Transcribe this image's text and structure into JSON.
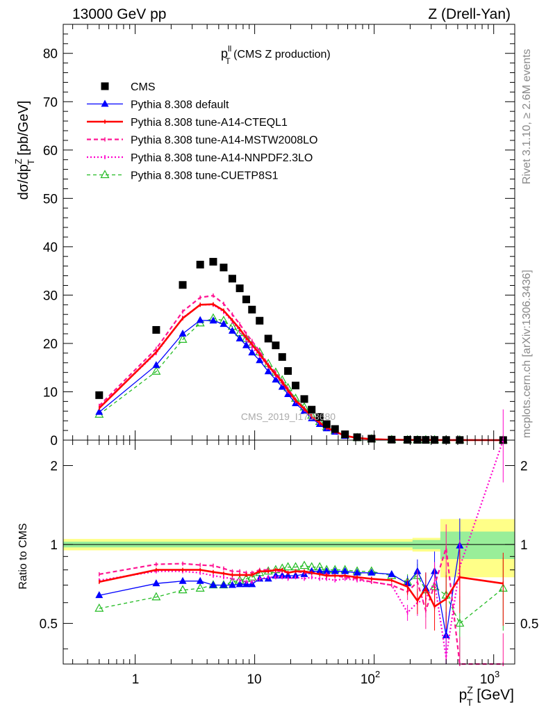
{
  "header": {
    "left": "13000 GeV pp",
    "right": "Z (Drell-Yan)"
  },
  "side": {
    "rivet": "Rivet 3.1.10, ≥ 2.6M events",
    "mcplots": "mcplots.cern.ch [arXiv:1306.3436]"
  },
  "watermark": "CMS_2019_I1753680",
  "main": {
    "title_main": "p",
    "title_sup": "ll",
    "title_sub": "T",
    "title_rest": " (CMS Z production)",
    "ylabel": "dσ/dp",
    "ylabel_sup": "Z",
    "ylabel_sub": "T",
    "ylabel_rest": " [pb/GeV]",
    "yticks": [
      "0",
      "10",
      "20",
      "30",
      "40",
      "50",
      "60",
      "70",
      "80"
    ]
  },
  "ratio": {
    "ylabel": "Ratio to CMS",
    "yticks": [
      "0.5",
      "1",
      "2"
    ]
  },
  "xaxis": {
    "label_main": "p",
    "label_sup": "Z",
    "label_sub": "T",
    "label_rest": " [GeV]",
    "tick_1": "1",
    "tick_10": "10",
    "tick_100_base": "10",
    "tick_100_exp": "2",
    "tick_1000_base": "10",
    "tick_1000_exp": "3"
  },
  "chart_data": {
    "type": "line",
    "xscale": "log",
    "xlim": [
      0.25,
      1500
    ],
    "ylim": [
      0,
      86
    ],
    "ratio_ylim": [
      0.35,
      2.5
    ],
    "ratio_yscale": "log",
    "legend_position": "top-left",
    "x": [
      0.5,
      1.5,
      2.5,
      3.5,
      4.5,
      5.5,
      6.5,
      7.5,
      8.5,
      9.5,
      11,
      13,
      15,
      17,
      19,
      22,
      26,
      30,
      35,
      40,
      47,
      57,
      72,
      95,
      140,
      190,
      230,
      270,
      320,
      400,
      520,
      1200
    ],
    "series": [
      {
        "name": "CMS",
        "color": "#000000",
        "style": "marker-square",
        "values": [
          9.3,
          22.8,
          32.1,
          36.3,
          36.9,
          35.7,
          33.4,
          31.4,
          29.1,
          27.0,
          24.7,
          21.0,
          19.6,
          17.2,
          14.3,
          11.3,
          8.5,
          6.3,
          4.8,
          3.3,
          2.3,
          1.2,
          0.6,
          0.3,
          0.1,
          0.07,
          0.06,
          0.05,
          0.04,
          0.03,
          0.02,
          0.01
        ]
      },
      {
        "name": "Pythia 8.308 default",
        "color": "#0000ff",
        "style": "solid-triangle",
        "values": [
          5.8,
          15.5,
          22.0,
          24.8,
          24.7,
          24.0,
          22.6,
          21.0,
          19.6,
          18.1,
          16.5,
          14.2,
          12.5,
          11.0,
          9.5,
          7.6,
          6.0,
          4.5,
          3.3,
          2.4,
          1.7,
          0.85,
          0.44,
          0.2,
          0.08,
          0.05,
          0.04,
          0.04,
          0.03,
          0.02,
          0.01,
          0.0
        ]
      },
      {
        "name": "Pythia 8.308 tune-A14-CTEQL1",
        "color": "#ff0000",
        "style": "solid-thick",
        "values": [
          6.6,
          18.2,
          25.2,
          28.0,
          28.1,
          26.8,
          24.8,
          23.0,
          21.2,
          19.8,
          17.8,
          15.4,
          13.6,
          12.0,
          10.3,
          8.2,
          6.5,
          4.9,
          3.6,
          2.6,
          1.8,
          0.9,
          0.46,
          0.21,
          0.08,
          0.05,
          0.04,
          0.04,
          0.03,
          0.02,
          0.01,
          0.0
        ]
      },
      {
        "name": "Pythia 8.308 tune-A14-MSTW2008LO",
        "color": "#ff1493",
        "style": "dashed",
        "values": [
          7.1,
          18.9,
          26.6,
          29.5,
          29.9,
          28.2,
          26.0,
          24.0,
          22.0,
          20.5,
          18.4,
          15.6,
          14.0,
          12.3,
          10.6,
          8.4,
          6.6,
          5.0,
          3.7,
          2.6,
          1.8,
          0.9,
          0.46,
          0.21,
          0.08,
          0.05,
          0.04,
          0.03,
          0.03,
          0.02,
          0.01,
          0.0
        ]
      },
      {
        "name": "Pythia 8.308 tune-A14-NNPDF2.3LO",
        "color": "#ff00cc",
        "style": "dotted",
        "values": [
          6.8,
          18.0,
          25.3,
          28.0,
          28.0,
          26.5,
          24.5,
          22.6,
          20.8,
          19.2,
          17.4,
          15.2,
          13.3,
          11.7,
          10.1,
          8.0,
          6.3,
          4.8,
          3.5,
          2.5,
          1.7,
          0.88,
          0.44,
          0.2,
          0.08,
          0.05,
          0.04,
          0.03,
          0.03,
          0.02,
          0.01,
          0.0
        ]
      },
      {
        "name": "Pythia 8.308 tune-CUETP8S1",
        "color": "#22bb22",
        "style": "dashed-triangle-open",
        "values": [
          5.3,
          14.2,
          20.8,
          24.2,
          25.2,
          24.7,
          23.5,
          22.2,
          21.0,
          19.8,
          18.2,
          15.8,
          14.0,
          12.4,
          10.8,
          8.6,
          6.8,
          5.1,
          3.8,
          2.7,
          1.9,
          0.98,
          0.49,
          0.22,
          0.08,
          0.05,
          0.04,
          0.04,
          0.03,
          0.02,
          0.01,
          0.0
        ]
      }
    ],
    "ratio_series": [
      {
        "name": "Pythia 8.308 default",
        "values": [
          0.64,
          0.71,
          0.725,
          0.725,
          0.7,
          0.7,
          0.7,
          0.705,
          0.705,
          0.705,
          0.74,
          0.74,
          0.76,
          0.76,
          0.76,
          0.76,
          0.77,
          0.79,
          0.79,
          0.79,
          0.79,
          0.79,
          0.78,
          0.78,
          0.77,
          0.71,
          0.79,
          0.68,
          0.79,
          0.45,
          0.99,
          0.0
        ]
      },
      {
        "name": "Pythia 8.308 tune-A14-CTEQL1",
        "values": [
          0.72,
          0.8,
          0.8,
          0.8,
          0.785,
          0.775,
          0.765,
          0.765,
          0.765,
          0.765,
          0.79,
          0.79,
          0.8,
          0.8,
          0.78,
          0.79,
          0.79,
          0.78,
          0.77,
          0.76,
          0.76,
          0.76,
          0.75,
          0.74,
          0.73,
          0.69,
          0.61,
          0.68,
          0.58,
          0.62,
          0.75,
          0.71
        ]
      },
      {
        "name": "Pythia 8.308 tune-A14-MSTW2008LO",
        "values": [
          0.77,
          0.84,
          0.845,
          0.835,
          0.83,
          0.81,
          0.79,
          0.79,
          0.78,
          0.78,
          0.8,
          0.8,
          0.79,
          0.79,
          0.78,
          0.79,
          0.78,
          0.78,
          0.77,
          0.77,
          0.76,
          0.75,
          0.74,
          0.72,
          0.7,
          0.66,
          0.72,
          0.56,
          0.7,
          0.97,
          0.35,
          0.35
        ]
      },
      {
        "name": "Pythia 8.308 tune-A14-NNPDF2.3LO",
        "values": [
          0.73,
          0.79,
          0.79,
          0.78,
          0.76,
          0.75,
          0.74,
          0.73,
          0.72,
          0.72,
          0.74,
          0.75,
          0.75,
          0.75,
          0.74,
          0.75,
          0.74,
          0.75,
          0.74,
          0.74,
          0.73,
          0.74,
          0.73,
          0.72,
          0.7,
          0.55,
          0.6,
          0.62,
          0.72,
          0.37,
          0.82,
          2.5
        ]
      },
      {
        "name": "Pythia 8.308 tune-CUETP8S1",
        "values": [
          0.57,
          0.63,
          0.67,
          0.68,
          0.7,
          0.7,
          0.72,
          0.73,
          0.74,
          0.75,
          0.78,
          0.79,
          0.8,
          0.81,
          0.82,
          0.82,
          0.83,
          0.82,
          0.82,
          0.8,
          0.8,
          0.8,
          0.79,
          0.79,
          0.76,
          0.72,
          0.76,
          0.67,
          0.69,
          0.64,
          0.5,
          0.68
        ]
      }
    ],
    "band_colors": {
      "inner": "#99ee99",
      "outer": "#ffff88"
    }
  }
}
